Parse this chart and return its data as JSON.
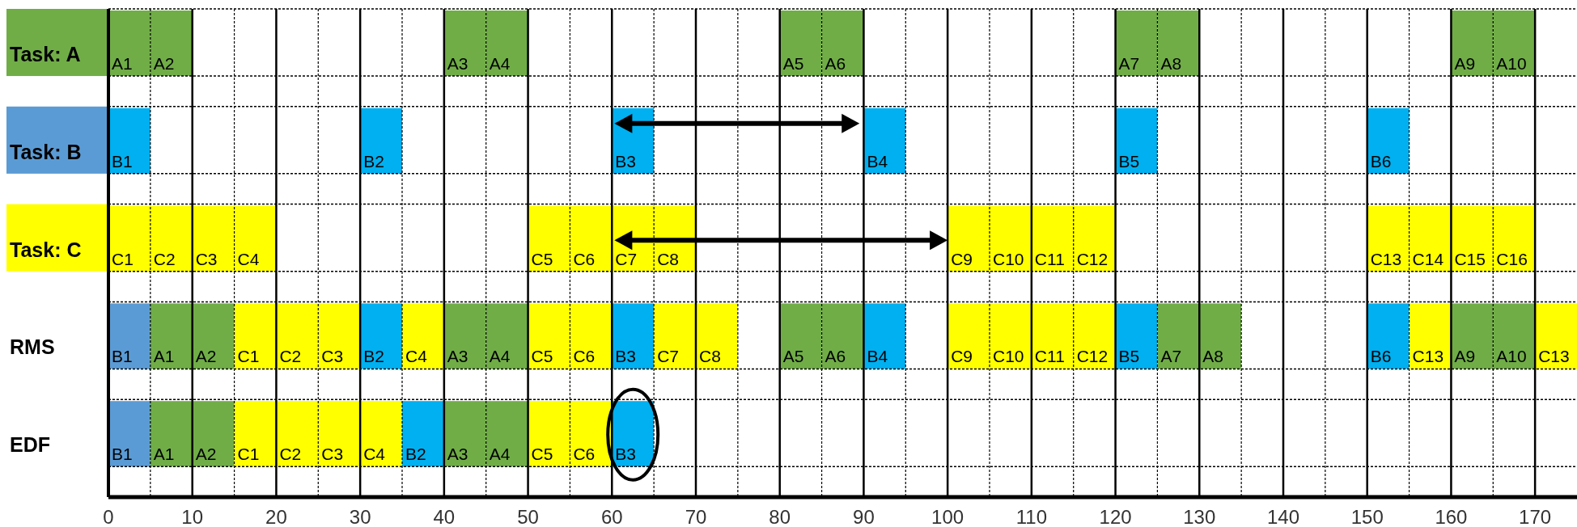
{
  "chart_data": {
    "type": "bar",
    "orientation": "horizontal",
    "categories": [
      "Task: A",
      null,
      "Task: B",
      null,
      "Task: C",
      null,
      "RMS",
      null,
      "EDF",
      null
    ],
    "xlim": [
      0,
      175
    ],
    "xticks": [
      0,
      {
        "value": 5,
        "label": null
      },
      10,
      {
        "value": 15,
        "label": null
      },
      20,
      {
        "value": 25,
        "label": null
      },
      30,
      {
        "value": 35,
        "label": null
      },
      40,
      {
        "value": 45,
        "label": null
      },
      50,
      {
        "value": 55,
        "label": null
      },
      60,
      {
        "value": 65,
        "label": null
      },
      70,
      {
        "value": 75,
        "label": null
      },
      80,
      {
        "value": 85,
        "label": null
      },
      90,
      {
        "value": 95,
        "label": null
      },
      100,
      {
        "value": 105,
        "label": null
      },
      110,
      {
        "value": 115,
        "label": null
      },
      120,
      {
        "value": 125,
        "label": null
      },
      130,
      {
        "value": 135,
        "label": null
      },
      140,
      {
        "value": 145,
        "label": null
      },
      150,
      {
        "value": 155,
        "label": null
      },
      160,
      {
        "value": 165,
        "label": null
      },
      170
    ],
    "grid": true,
    "series": [
      {
        "values": [
          5,
          null,
          5,
          null,
          5,
          null,
          5,
          null,
          5,
          null
        ],
        "base": [
          0,
          null,
          0,
          null,
          0,
          null,
          0,
          null,
          0,
          null
        ],
        "colors": [
          "#70ad47",
          null,
          "#00b0f0",
          null,
          "#ffff00",
          null,
          "#5b9bd5",
          null,
          "#5b9bd5",
          null
        ],
        "value_labels": [
          "A1",
          null,
          "B1",
          null,
          "C1",
          null,
          "B1",
          null,
          "B1",
          null
        ]
      },
      {
        "values": [
          5,
          null,
          5,
          null,
          5,
          null,
          5,
          null,
          5,
          null
        ],
        "base": [
          5,
          null,
          30,
          null,
          5,
          null,
          5,
          null,
          5,
          null
        ],
        "colors": [
          "#70ad47",
          null,
          "#00b0f0",
          null,
          "#ffff00",
          null,
          "#70ad47",
          null,
          "#70ad47",
          null
        ],
        "value_labels": [
          "A2",
          null,
          "B2",
          null,
          "C2",
          null,
          "A1",
          null,
          "A1",
          null
        ]
      },
      {
        "values": [
          5,
          null,
          5,
          null,
          5,
          null,
          5,
          null,
          5,
          null
        ],
        "base": [
          40,
          null,
          60,
          null,
          10,
          null,
          10,
          null,
          10,
          null
        ],
        "colors": [
          "#70ad47",
          null,
          "#00b0f0",
          null,
          "#ffff00",
          null,
          "#70ad47",
          null,
          "#70ad47",
          null
        ],
        "value_labels": [
          "A3",
          null,
          "B3",
          null,
          "C3",
          null,
          "A2",
          null,
          "A2",
          null
        ]
      },
      {
        "values": [
          5,
          null,
          5,
          null,
          5,
          null,
          5,
          null,
          5,
          null
        ],
        "base": [
          45,
          null,
          90,
          null,
          15,
          null,
          15,
          null,
          15,
          null
        ],
        "colors": [
          "#70ad47",
          null,
          "#00b0f0",
          null,
          "#ffff00",
          null,
          "#ffff00",
          null,
          "#ffff00",
          null
        ],
        "value_labels": [
          "A4",
          null,
          "B4",
          null,
          "C4",
          null,
          "C1",
          null,
          "C1",
          null
        ]
      },
      {
        "values": [
          5,
          null,
          5,
          null,
          5,
          null,
          5,
          null,
          5,
          null
        ],
        "base": [
          80,
          null,
          120,
          null,
          50,
          null,
          20,
          null,
          20,
          null
        ],
        "colors": [
          "#70ad47",
          null,
          "#00b0f0",
          null,
          "#ffff00",
          null,
          "#ffff00",
          null,
          "#ffff00",
          null
        ],
        "value_labels": [
          "A5",
          null,
          "B5",
          null,
          "C5",
          null,
          "C2",
          null,
          "C2",
          null
        ]
      },
      {
        "values": [
          5,
          null,
          5,
          null,
          5,
          null,
          5,
          null,
          5,
          null
        ],
        "base": [
          85,
          null,
          150,
          null,
          55,
          null,
          25,
          null,
          25,
          null
        ],
        "colors": [
          "#70ad47",
          null,
          "#00b0f0",
          null,
          "#ffff00",
          null,
          "#ffff00",
          null,
          "#ffff00",
          null
        ],
        "value_labels": [
          "A6",
          null,
          "B6",
          null,
          "C6",
          null,
          "C3",
          null,
          "C3",
          null
        ]
      },
      {
        "values": [
          5,
          null,
          null,
          null,
          5,
          null,
          5,
          null,
          5,
          null
        ],
        "base": [
          120,
          null,
          null,
          null,
          60,
          null,
          30,
          null,
          30,
          null
        ],
        "colors": [
          "#70ad47",
          null,
          null,
          null,
          "#ffff00",
          null,
          "#00b0f0",
          null,
          "#ffff00",
          null
        ],
        "value_labels": [
          "A7",
          null,
          null,
          null,
          "C7",
          null,
          "B2",
          null,
          "C4",
          null
        ]
      },
      {
        "values": [
          5,
          null,
          null,
          null,
          5,
          null,
          5,
          null,
          5,
          null
        ],
        "base": [
          125,
          null,
          null,
          null,
          65,
          null,
          35,
          null,
          35,
          null
        ],
        "colors": [
          "#70ad47",
          null,
          null,
          null,
          "#ffff00",
          null,
          "#ffff00",
          null,
          "#00b0f0",
          null
        ],
        "value_labels": [
          "A8",
          null,
          null,
          null,
          "C8",
          null,
          "C4",
          null,
          "B2",
          null
        ]
      },
      {
        "values": [
          5,
          null,
          null,
          null,
          5,
          null,
          5,
          null,
          5,
          null
        ],
        "base": [
          160,
          null,
          null,
          null,
          100,
          null,
          40,
          null,
          40,
          null
        ],
        "colors": [
          "#70ad47",
          null,
          null,
          null,
          "#ffff00",
          null,
          "#70ad47",
          null,
          "#70ad47",
          null
        ],
        "value_labels": [
          "A9",
          null,
          null,
          null,
          "C9",
          null,
          "A3",
          null,
          "A3",
          null
        ]
      },
      {
        "values": [
          5,
          null,
          null,
          null,
          5,
          null,
          5,
          null,
          5,
          null
        ],
        "base": [
          165,
          null,
          null,
          null,
          105,
          null,
          45,
          null,
          45,
          null
        ],
        "colors": [
          "#70ad47",
          null,
          null,
          null,
          "#ffff00",
          null,
          "#70ad47",
          null,
          "#70ad47",
          null
        ],
        "value_labels": [
          "A10",
          null,
          null,
          null,
          "C10",
          null,
          "A4",
          null,
          "A4",
          null
        ]
      },
      {
        "values": [
          null,
          null,
          null,
          null,
          5,
          null,
          5,
          null,
          5,
          null
        ],
        "base": [
          null,
          null,
          null,
          null,
          110,
          null,
          50,
          null,
          50,
          null
        ],
        "colors": [
          null,
          null,
          null,
          null,
          "#ffff00",
          null,
          "#ffff00",
          null,
          "#ffff00",
          null
        ],
        "value_labels": [
          null,
          null,
          null,
          null,
          "C11",
          null,
          "C5",
          null,
          "C5",
          null
        ]
      },
      {
        "values": [
          null,
          null,
          null,
          null,
          5,
          null,
          5,
          null,
          5,
          null
        ],
        "base": [
          null,
          null,
          null,
          null,
          115,
          null,
          55,
          null,
          55,
          null
        ],
        "colors": [
          null,
          null,
          null,
          null,
          "#ffff00",
          null,
          "#ffff00",
          null,
          "#ffff00",
          null
        ],
        "value_labels": [
          null,
          null,
          null,
          null,
          "C12",
          null,
          "C6",
          null,
          "C6",
          null
        ]
      },
      {
        "values": [
          null,
          null,
          null,
          null,
          5,
          null,
          5,
          null,
          5,
          null
        ],
        "base": [
          null,
          null,
          null,
          null,
          150,
          null,
          60,
          null,
          60,
          null
        ],
        "colors": [
          null,
          null,
          null,
          null,
          "#ffff00",
          null,
          "#00b0f0",
          null,
          "#00b0f0",
          null
        ],
        "value_labels": [
          null,
          null,
          null,
          null,
          "C13",
          null,
          "B3",
          null,
          "B3",
          null
        ]
      },
      {
        "values": [
          null,
          null,
          null,
          null,
          5,
          null,
          5,
          null,
          null,
          null
        ],
        "base": [
          null,
          null,
          null,
          null,
          155,
          null,
          65,
          null,
          null,
          null
        ],
        "colors": [
          null,
          null,
          null,
          null,
          "#ffff00",
          null,
          "#ffff00",
          null,
          null,
          null
        ],
        "value_labels": [
          null,
          null,
          null,
          null,
          "C14",
          null,
          "C7",
          null,
          null,
          null
        ]
      },
      {
        "values": [
          null,
          null,
          null,
          null,
          5,
          null,
          5,
          null,
          null,
          null
        ],
        "base": [
          null,
          null,
          null,
          null,
          160,
          null,
          70,
          null,
          null,
          null
        ],
        "colors": [
          null,
          null,
          null,
          null,
          "#ffff00",
          null,
          "#ffff00",
          null,
          null,
          null
        ],
        "value_labels": [
          null,
          null,
          null,
          null,
          "C15",
          null,
          "C8",
          null,
          null,
          null
        ]
      },
      {
        "values": [
          null,
          null,
          null,
          null,
          5,
          null,
          5,
          null,
          null,
          null
        ],
        "base": [
          null,
          null,
          null,
          null,
          165,
          null,
          80,
          null,
          null,
          null
        ],
        "colors": [
          null,
          null,
          null,
          null,
          "#ffff00",
          null,
          "#70ad47",
          null,
          null,
          null
        ],
        "value_labels": [
          null,
          null,
          null,
          null,
          "C16",
          null,
          "A5",
          null,
          null,
          null
        ]
      },
      {
        "values": [
          null,
          null,
          null,
          null,
          null,
          null,
          5,
          null,
          null,
          null
        ],
        "base": [
          null,
          null,
          null,
          null,
          null,
          null,
          85,
          null,
          null,
          null
        ],
        "colors": [
          null,
          null,
          null,
          null,
          null,
          null,
          "#70ad47",
          null,
          null,
          null
        ],
        "value_labels": [
          null,
          null,
          null,
          null,
          null,
          null,
          "A6",
          null,
          null,
          null
        ]
      },
      {
        "values": [
          null,
          null,
          null,
          null,
          null,
          null,
          5,
          null,
          null,
          null
        ],
        "base": [
          null,
          null,
          null,
          null,
          null,
          null,
          90,
          null,
          null,
          null
        ],
        "colors": [
          null,
          null,
          null,
          null,
          null,
          null,
          "#00b0f0",
          null,
          null,
          null
        ],
        "value_labels": [
          null,
          null,
          null,
          null,
          null,
          null,
          "B4",
          null,
          null,
          null
        ]
      },
      {
        "values": [
          null,
          null,
          null,
          null,
          null,
          null,
          5,
          null,
          null,
          null
        ],
        "base": [
          null,
          null,
          null,
          null,
          null,
          null,
          100,
          null,
          null,
          null
        ],
        "colors": [
          null,
          null,
          null,
          null,
          null,
          null,
          "#ffff00",
          null,
          null,
          null
        ],
        "value_labels": [
          null,
          null,
          null,
          null,
          null,
          null,
          "C9",
          null,
          null,
          null
        ]
      },
      {
        "values": [
          null,
          null,
          null,
          null,
          null,
          null,
          5,
          null,
          null,
          null
        ],
        "base": [
          null,
          null,
          null,
          null,
          null,
          null,
          105,
          null,
          null,
          null
        ],
        "colors": [
          null,
          null,
          null,
          null,
          null,
          null,
          "#ffff00",
          null,
          null,
          null
        ],
        "value_labels": [
          null,
          null,
          null,
          null,
          null,
          null,
          "C10",
          null,
          null,
          null
        ]
      },
      {
        "values": [
          null,
          null,
          null,
          null,
          null,
          null,
          5,
          null,
          null,
          null
        ],
        "base": [
          null,
          null,
          null,
          null,
          null,
          null,
          110,
          null,
          null,
          null
        ],
        "colors": [
          null,
          null,
          null,
          null,
          null,
          null,
          "#ffff00",
          null,
          null,
          null
        ],
        "value_labels": [
          null,
          null,
          null,
          null,
          null,
          null,
          "C11",
          null,
          null,
          null
        ]
      },
      {
        "values": [
          null,
          null,
          null,
          null,
          null,
          null,
          5,
          null,
          null,
          null
        ],
        "base": [
          null,
          null,
          null,
          null,
          null,
          null,
          115,
          null,
          null,
          null
        ],
        "colors": [
          null,
          null,
          null,
          null,
          null,
          null,
          "#ffff00",
          null,
          null,
          null
        ],
        "value_labels": [
          null,
          null,
          null,
          null,
          null,
          null,
          "C12",
          null,
          null,
          null
        ]
      },
      {
        "values": [
          null,
          null,
          null,
          null,
          null,
          null,
          5,
          null,
          null,
          null
        ],
        "base": [
          null,
          null,
          null,
          null,
          null,
          null,
          120,
          null,
          null,
          null
        ],
        "colors": [
          null,
          null,
          null,
          null,
          null,
          null,
          "#00b0f0",
          null,
          null,
          null
        ],
        "value_labels": [
          null,
          null,
          null,
          null,
          null,
          null,
          "B5",
          null,
          null,
          null
        ]
      },
      {
        "values": [
          null,
          null,
          null,
          null,
          null,
          null,
          5,
          null,
          null,
          null
        ],
        "base": [
          null,
          null,
          null,
          null,
          null,
          null,
          125,
          null,
          null,
          null
        ],
        "colors": [
          null,
          null,
          null,
          null,
          null,
          null,
          "#70ad47",
          null,
          null,
          null
        ],
        "value_labels": [
          null,
          null,
          null,
          null,
          null,
          null,
          "A7",
          null,
          null,
          null
        ]
      },
      {
        "values": [
          null,
          null,
          null,
          null,
          null,
          null,
          5,
          null,
          null,
          null
        ],
        "base": [
          null,
          null,
          null,
          null,
          null,
          null,
          130,
          null,
          null,
          null
        ],
        "colors": [
          null,
          null,
          null,
          null,
          null,
          null,
          "#70ad47",
          null,
          null,
          null
        ],
        "value_labels": [
          null,
          null,
          null,
          null,
          null,
          null,
          "A8",
          null,
          null,
          null
        ]
      },
      {
        "values": [
          null,
          null,
          null,
          null,
          null,
          null,
          5,
          null,
          null,
          null
        ],
        "base": [
          null,
          null,
          null,
          null,
          null,
          null,
          150,
          null,
          null,
          null
        ],
        "colors": [
          null,
          null,
          null,
          null,
          null,
          null,
          "#00b0f0",
          null,
          null,
          null
        ],
        "value_labels": [
          null,
          null,
          null,
          null,
          null,
          null,
          "B6",
          null,
          null,
          null
        ]
      },
      {
        "values": [
          null,
          null,
          null,
          null,
          null,
          null,
          5,
          null,
          null,
          null
        ],
        "base": [
          null,
          null,
          null,
          null,
          null,
          null,
          155,
          null,
          null,
          null
        ],
        "colors": [
          null,
          null,
          null,
          null,
          null,
          null,
          "#ffff00",
          null,
          null,
          null
        ],
        "value_labels": [
          null,
          null,
          null,
          null,
          null,
          null,
          "C13",
          null,
          null,
          null
        ]
      },
      {
        "values": [
          null,
          null,
          null,
          null,
          null,
          null,
          5,
          null,
          null,
          null
        ],
        "base": [
          null,
          null,
          null,
          null,
          null,
          null,
          160,
          null,
          null,
          null
        ],
        "colors": [
          null,
          null,
          null,
          null,
          null,
          null,
          "#70ad47",
          null,
          null,
          null
        ],
        "value_labels": [
          null,
          null,
          null,
          null,
          null,
          null,
          "A9",
          null,
          null,
          null
        ]
      },
      {
        "values": [
          null,
          null,
          null,
          null,
          null,
          null,
          5,
          null,
          null,
          null
        ],
        "base": [
          null,
          null,
          null,
          null,
          null,
          null,
          165,
          null,
          null,
          null
        ],
        "colors": [
          null,
          null,
          null,
          null,
          null,
          null,
          "#70ad47",
          null,
          null,
          null
        ],
        "value_labels": [
          null,
          null,
          null,
          null,
          null,
          null,
          "A10",
          null,
          null,
          null
        ]
      },
      {
        "values": [
          null,
          null,
          null,
          null,
          null,
          null,
          5,
          null,
          null,
          null
        ],
        "base": [
          null,
          null,
          null,
          null,
          null,
          null,
          170,
          null,
          null,
          null
        ],
        "colors": [
          null,
          null,
          null,
          null,
          null,
          null,
          "#ffff00",
          null,
          null,
          null
        ],
        "value_labels": [
          null,
          null,
          null,
          null,
          null,
          null,
          "C13",
          null,
          null,
          null
        ]
      }
    ]
  }
}
